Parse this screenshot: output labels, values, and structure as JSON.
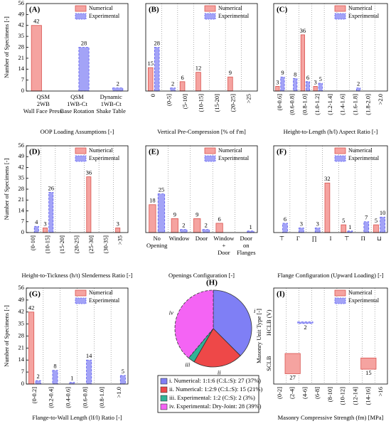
{
  "chart_data": [
    {
      "type": "bar",
      "label": "(A)",
      "xlabel": "OOP Loading Assumptions [-]",
      "ylabel": "Number of Specimens [-]",
      "categories": [
        [
          "QSM",
          "2WB",
          "Wall Face Press."
        ],
        [
          "QSM",
          "1WB-Ct",
          "Base Rotation"
        ],
        [
          "Dynamic",
          "1WB-Ct",
          "Shake Table"
        ]
      ],
      "series": [
        {
          "name": "Numerical",
          "color": "#f5a3a0",
          "values": [
            42,
            null,
            null
          ]
        },
        {
          "name": "Experimental",
          "color": "#a3a3f7",
          "values": [
            null,
            28,
            2
          ]
        }
      ],
      "ylim": [
        0,
        56
      ],
      "yticks": [
        0,
        7,
        14,
        21,
        28,
        35,
        42,
        49,
        56
      ],
      "grid": false
    },
    {
      "type": "bar",
      "label": "(B)",
      "xlabel": "Vertical Pre-Compression [% of f'm]",
      "categories": [
        "0",
        "(0-5]",
        "(5-10]",
        "(10-15]",
        "(15-20]",
        "(20-25]",
        ">25"
      ],
      "series": [
        {
          "name": "Numerical",
          "color": "#f5a3a0",
          "values": [
            15,
            null,
            6,
            12,
            null,
            9,
            null
          ]
        },
        {
          "name": "Experimental",
          "color": "#a3a3f7",
          "values": [
            28,
            2,
            null,
            null,
            null,
            null,
            null
          ]
        }
      ],
      "ylim": [
        0,
        56
      ],
      "grid": true
    },
    {
      "type": "bar",
      "label": "(C)",
      "xlabel": "Height-to-Length (h/l) Aspect Ratio [-]",
      "categories": [
        "(0-0.6]",
        "(0.6-0.8]",
        "(0.8-1.0]",
        "(1.0-1.2]",
        "(1.2-1.4]",
        "(1.4-1.6]",
        "(1.6-1.8]",
        "(1.8-2.0]",
        ">2.0"
      ],
      "series": [
        {
          "name": "Numerical",
          "color": "#f5a3a0",
          "values": [
            3,
            null,
            36,
            3,
            null,
            null,
            null,
            null,
            null
          ]
        },
        {
          "name": "Experimental",
          "color": "#a3a3f7",
          "values": [
            9,
            8,
            6,
            5,
            null,
            null,
            2,
            null,
            null
          ]
        }
      ],
      "ylim": [
        0,
        56
      ],
      "grid": true
    },
    {
      "type": "bar",
      "label": "(D)",
      "xlabel": "Height-to-Tickness (h/t) Slenderness Ratio [-]",
      "ylabel": "Number of Specimens [-]",
      "categories": [
        "(0-10]",
        "(10-15]",
        "(15-20]",
        "(20-25]",
        "(25-30]",
        "(30-35]",
        ">35"
      ],
      "series": [
        {
          "name": "Numerical",
          "color": "#f5a3a0",
          "values": [
            null,
            3,
            null,
            null,
            36,
            null,
            3
          ]
        },
        {
          "name": "Experimental",
          "color": "#a3a3f7",
          "values": [
            4,
            26,
            null,
            null,
            null,
            null,
            null
          ]
        }
      ],
      "ylim": [
        0,
        56
      ],
      "yticks": [
        0,
        7,
        14,
        21,
        28,
        35,
        42,
        49,
        56
      ],
      "grid": true
    },
    {
      "type": "bar",
      "label": "(E)",
      "xlabel": "Openings Configuration [-]",
      "categories": [
        [
          "No",
          "Opening"
        ],
        [
          "Window"
        ],
        [
          "Door"
        ],
        [
          "Window",
          "+",
          "Door"
        ],
        [
          "Door",
          "on",
          "Flanges"
        ]
      ],
      "series": [
        {
          "name": "Numerical",
          "color": "#f5a3a0",
          "values": [
            18,
            9,
            9,
            6,
            null
          ]
        },
        {
          "name": "Experimental",
          "color": "#a3a3f7",
          "values": [
            25,
            2,
            2,
            null,
            1
          ]
        }
      ],
      "ylim": [
        0,
        56
      ],
      "grid": true
    },
    {
      "type": "bar",
      "label": "(F)",
      "xlabel": "Flange Configuration (Upward Loading) [-]",
      "categories": [
        "⊤",
        "Γ",
        "∏",
        "I",
        "⊤",
        "Π",
        "⊔"
      ],
      "series": [
        {
          "name": "Numerical",
          "color": "#f5a3a0",
          "values": [
            null,
            null,
            null,
            32,
            5,
            null,
            5
          ]
        },
        {
          "name": "Experimental",
          "color": "#a3a3f7",
          "values": [
            6,
            3,
            3,
            null,
            1,
            7,
            10
          ]
        }
      ],
      "ylim": [
        0,
        56
      ],
      "grid": true
    },
    {
      "type": "bar",
      "label": "(G)",
      "xlabel": "Flange-to-Wall Length (lf/l) Ratio [-]",
      "ylabel": "Number of Specimens [-]",
      "categories": [
        "(0-0.2]",
        "(0.2-0.4]",
        "(0.4-0.6]",
        "(0.6-0.8]",
        "(0.8-1.0]",
        ">1.0"
      ],
      "series": [
        {
          "name": "Numerical",
          "color": "#f5a3a0",
          "values": [
            42,
            null,
            null,
            null,
            null,
            null
          ]
        },
        {
          "name": "Experimental",
          "color": "#a3a3f7",
          "values": [
            2,
            8,
            1,
            14,
            null,
            5
          ]
        }
      ],
      "ylim": [
        0,
        56
      ],
      "yticks": [
        0,
        7,
        14,
        21,
        28,
        35,
        42,
        49,
        56
      ],
      "grid": true
    },
    {
      "type": "pie",
      "label": "(H)",
      "values": [
        27,
        15,
        2,
        28
      ],
      "labels": [
        "i",
        "ii",
        "iii",
        "iv"
      ],
      "colors": [
        "#7f7ff5",
        "#ee4848",
        "#2fb396",
        "#f464f4"
      ],
      "legend": [
        "i. Numerical: 1:1:6 (C:L:S): 27 (37%)",
        "ii. Numerical: 1:2:9 (C:L:S): 15 (21%)",
        "iii. Experimental: 1:2 (C:S): 2 (3%)",
        "iv. Experimental: Dry-Joint: 28 (39%)"
      ]
    },
    {
      "type": "matrix",
      "label": "(I)",
      "xlabel": "Masonry Compressive Strength (fm) [MPa]",
      "ylabel": "Masonry Unit Type [-]",
      "categories": [
        "(0-2]",
        "(2-4]",
        "(4-6]",
        "(6-8]",
        "(8-10]",
        "(10-12]",
        "(12-14]",
        "(14-16]",
        ">16"
      ],
      "y_categories": [
        "SCLB",
        "HCLB (V)"
      ],
      "series": [
        {
          "name": "Numerical",
          "color": "#f5a3a0",
          "values": [
            [
              null,
              27,
              null,
              null,
              null,
              null,
              null,
              15,
              null
            ],
            [
              null,
              null,
              null,
              null,
              null,
              null,
              null,
              null,
              null
            ]
          ]
        },
        {
          "name": "Experimental",
          "color": "#a3a3f7",
          "values": [
            [
              null,
              null,
              null,
              null,
              null,
              null,
              null,
              null,
              null
            ],
            [
              null,
              null,
              2,
              null,
              null,
              null,
              null,
              null,
              null
            ]
          ]
        }
      ],
      "grid": true
    }
  ]
}
